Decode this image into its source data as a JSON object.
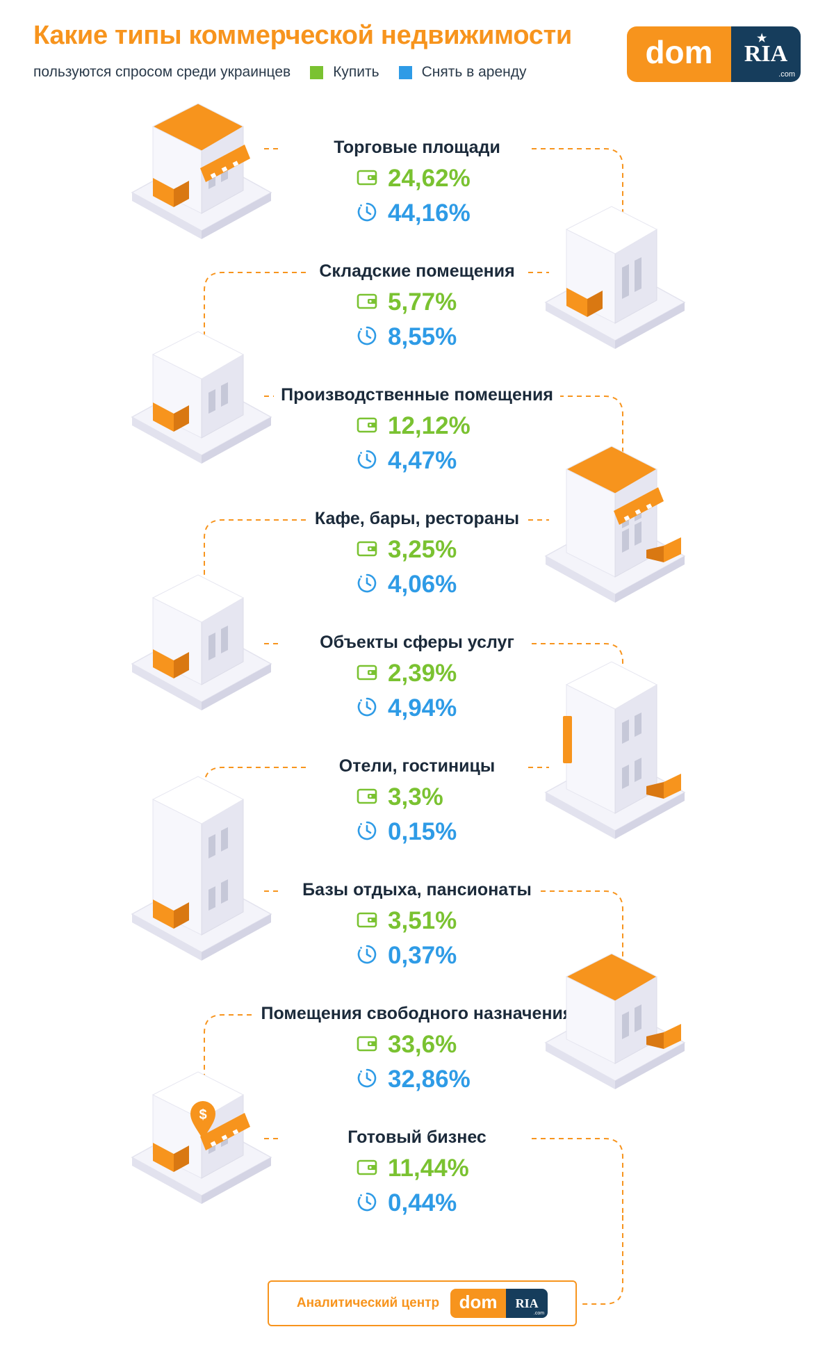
{
  "header": {
    "title": "Какие типы коммерческой недвижимости",
    "subtitle": "пользуются спросом среди украинцев",
    "legend": [
      {
        "label": "Купить",
        "color": "#7ac231"
      },
      {
        "label": "Снять в аренду",
        "color": "#2e9be6"
      }
    ],
    "logo": {
      "dom": "dom",
      "ria": "RIA",
      "com": ".com"
    }
  },
  "chart_data": {
    "type": "table",
    "series": [
      {
        "name": "Купить",
        "color": "#7ac231",
        "icon": "wallet-icon"
      },
      {
        "name": "Снять в аренду",
        "color": "#2e9be6",
        "icon": "clock-icon"
      }
    ],
    "unit": "%",
    "rows": [
      {
        "category": "Торговые площади",
        "buy": "24,62%",
        "rent": "44,16%",
        "buy_value": 24.62,
        "rent_value": 44.16,
        "icon": "shop-icon"
      },
      {
        "category": "Складские помещения",
        "buy": "5,77%",
        "rent": "8,55%",
        "buy_value": 5.77,
        "rent_value": 8.55,
        "icon": "warehouse-icon"
      },
      {
        "category": "Производственные помещения",
        "buy": "12,12%",
        "rent": "4,47%",
        "buy_value": 12.12,
        "rent_value": 4.47,
        "icon": "factory-icon"
      },
      {
        "category": "Кафе, бары, рестораны",
        "buy": "3,25%",
        "rent": "4,06%",
        "buy_value": 3.25,
        "rent_value": 4.06,
        "icon": "cafe-icon"
      },
      {
        "category": "Объекты сферы услуг",
        "buy": "2,39%",
        "rent": "4,94%",
        "buy_value": 2.39,
        "rent_value": 4.94,
        "icon": "service-building-icon"
      },
      {
        "category": "Отели, гостиницы",
        "buy": "3,3%",
        "rent": "0,15%",
        "buy_value": 3.3,
        "rent_value": 0.15,
        "icon": "hotel-icon"
      },
      {
        "category": "Базы отдыха, пансионаты",
        "buy": "3,51%",
        "rent": "0,37%",
        "buy_value": 3.51,
        "rent_value": 0.37,
        "icon": "resort-icon"
      },
      {
        "category": "Помещения свободного назначения",
        "buy": "33,6%",
        "rent": "32,86%",
        "buy_value": 33.6,
        "rent_value": 32.86,
        "icon": "free-use-building-icon"
      },
      {
        "category": "Готовый бизнес",
        "buy": "11,44%",
        "rent": "0,44%",
        "buy_value": 11.44,
        "rent_value": 0.44,
        "icon": "ready-business-icon"
      }
    ]
  },
  "footer": {
    "text": "Аналитический центр",
    "logo_dom": "dom",
    "logo_ria": "RIA",
    "logo_com": ".com"
  },
  "colors": {
    "accent": "#f7941d",
    "buy": "#7ac231",
    "rent": "#2e9be6",
    "navy": "#163d5c",
    "text": "#1b2a3a"
  }
}
